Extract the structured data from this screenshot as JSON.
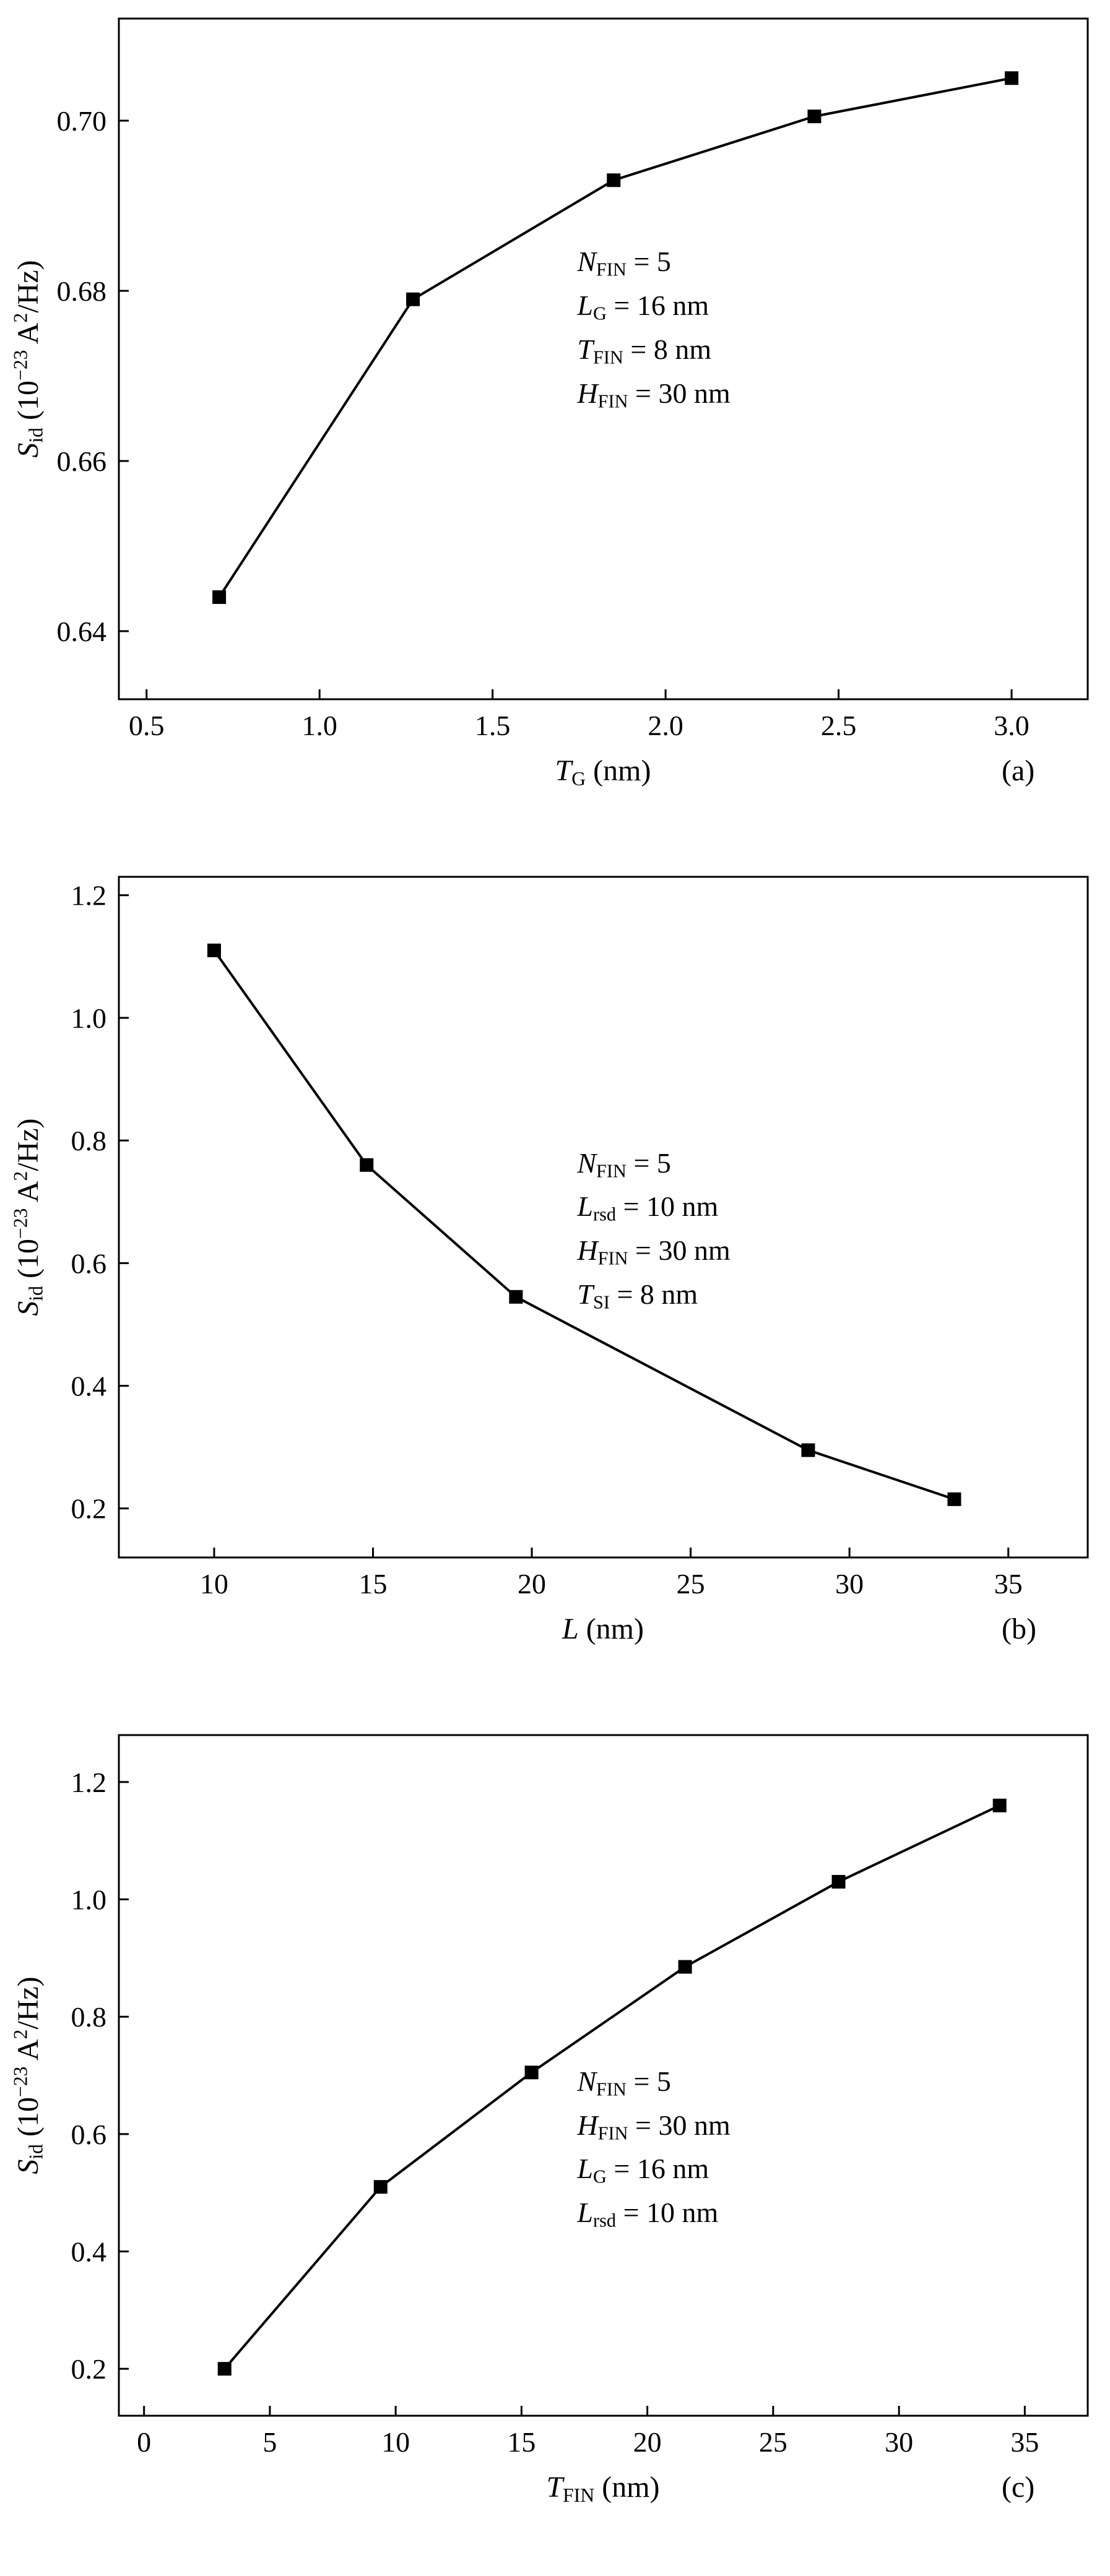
{
  "page": {
    "background": "#ffffff",
    "line_color": "#000000",
    "marker_color": "#000000"
  },
  "chart_data": [
    {
      "type": "line",
      "panel_label": "(a)",
      "marker": "square",
      "grid": false,
      "legend": "none",
      "x": [
        0.71,
        1.27,
        1.85,
        2.43,
        3.0
      ],
      "y": [
        0.644,
        0.679,
        0.693,
        0.7005,
        0.705
      ],
      "xlim": [
        0.42,
        3.22
      ],
      "ylim": [
        0.632,
        0.712
      ],
      "xticks": [
        0.5,
        1.0,
        1.5,
        2.0,
        2.5,
        3.0
      ],
      "xtick_labels": [
        "0.5",
        "1.0",
        "1.5",
        "2.0",
        "2.5",
        "3.0"
      ],
      "yticks": [
        0.64,
        0.66,
        0.68,
        0.7
      ],
      "ytick_labels": [
        "0.64",
        "0.66",
        "0.68",
        "0.70"
      ],
      "xlabel": [
        {
          "t": "T",
          "s": "i"
        },
        {
          "t": "G",
          "s": "sb"
        },
        {
          "t": " (nm)",
          "s": "n"
        }
      ],
      "ylabel": [
        {
          "t": "S",
          "s": "i"
        },
        {
          "t": "id",
          "s": "sb"
        },
        {
          "t": " (10",
          "s": "n"
        },
        {
          "t": "−23",
          "s": "sp"
        },
        {
          "t": " A",
          "s": "n"
        },
        {
          "t": "2",
          "s": "sp"
        },
        {
          "t": "/Hz)",
          "s": "n"
        }
      ],
      "annotation": [
        [
          {
            "t": "N",
            "s": "i"
          },
          {
            "t": "FIN",
            "s": "sb"
          },
          {
            "t": " = 5",
            "s": "n"
          }
        ],
        [
          {
            "t": "L",
            "s": "i"
          },
          {
            "t": "G",
            "s": "sb"
          },
          {
            "t": " = 16 nm",
            "s": "n"
          }
        ],
        [
          {
            "t": "T",
            "s": "i"
          },
          {
            "t": "FIN",
            "s": "sb"
          },
          {
            "t": " = 8 nm",
            "s": "n"
          }
        ],
        [
          {
            "t": "H",
            "s": "i"
          },
          {
            "t": "FIN",
            "s": "sb"
          },
          {
            "t": " = 30 nm",
            "s": "n"
          }
        ]
      ],
      "annot_pos": {
        "x": 0.52,
        "y": 0.28
      }
    },
    {
      "type": "line",
      "panel_label": "(b)",
      "marker": "square",
      "grid": false,
      "legend": "none",
      "x": [
        10,
        14.8,
        19.5,
        28.7,
        33.3
      ],
      "y": [
        1.11,
        0.76,
        0.545,
        0.295,
        0.215
      ],
      "xlim": [
        7,
        37.5
      ],
      "ylim": [
        0.12,
        1.23
      ],
      "xticks": [
        10,
        15,
        20,
        25,
        30,
        35
      ],
      "xtick_labels": [
        "10",
        "15",
        "20",
        "25",
        "30",
        "35"
      ],
      "yticks": [
        0.2,
        0.4,
        0.6,
        0.8,
        1.0,
        1.2
      ],
      "ytick_labels": [
        "0.2",
        "0.4",
        "0.6",
        "0.8",
        "1.0",
        "1.2"
      ],
      "xlabel": [
        {
          "t": "L",
          "s": "i"
        },
        {
          "t": " (nm)",
          "s": "n"
        }
      ],
      "ylabel": [
        {
          "t": "S",
          "s": "i"
        },
        {
          "t": "id",
          "s": "sb"
        },
        {
          "t": " (10",
          "s": "n"
        },
        {
          "t": "−23",
          "s": "sp"
        },
        {
          "t": " A",
          "s": "n"
        },
        {
          "t": "2",
          "s": "sp"
        },
        {
          "t": "/Hz)",
          "s": "n"
        }
      ],
      "annotation": [
        [
          {
            "t": "N",
            "s": "i"
          },
          {
            "t": "FIN",
            "s": "sb"
          },
          {
            "t": " = 5",
            "s": "n"
          }
        ],
        [
          {
            "t": "L",
            "s": "i"
          },
          {
            "t": "rsd",
            "s": "sb"
          },
          {
            "t": " = 10 nm",
            "s": "n"
          }
        ],
        [
          {
            "t": "H",
            "s": "i"
          },
          {
            "t": "FIN",
            "s": "sb"
          },
          {
            "t": " = 30 nm",
            "s": "n"
          }
        ],
        [
          {
            "t": "T",
            "s": "i"
          },
          {
            "t": "SI",
            "s": "sb"
          },
          {
            "t": " = 8 nm",
            "s": "n"
          }
        ]
      ],
      "annot_pos": {
        "x": 0.52,
        "y": 0.33
      }
    },
    {
      "type": "line",
      "panel_label": "(c)",
      "marker": "square",
      "grid": false,
      "legend": "none",
      "x": [
        3.2,
        9.4,
        15.4,
        21.5,
        27.6,
        34.0
      ],
      "y": [
        0.2,
        0.51,
        0.705,
        0.885,
        1.03,
        1.16
      ],
      "xlim": [
        -1,
        37.5
      ],
      "ylim": [
        0.12,
        1.28
      ],
      "xticks": [
        0,
        5,
        10,
        15,
        20,
        25,
        30,
        35
      ],
      "xtick_labels": [
        "0",
        "5",
        "10",
        "15",
        "20",
        "25",
        "30",
        "35"
      ],
      "yticks": [
        0.2,
        0.4,
        0.6,
        0.8,
        1.0,
        1.2
      ],
      "ytick_labels": [
        "0.2",
        "0.4",
        "0.6",
        "0.8",
        "1.0",
        "1.2"
      ],
      "xlabel": [
        {
          "t": "T",
          "s": "i"
        },
        {
          "t": "FIN",
          "s": "sb"
        },
        {
          "t": " (nm)",
          "s": "n"
        }
      ],
      "ylabel": [
        {
          "t": "S",
          "s": "i"
        },
        {
          "t": "id",
          "s": "sb"
        },
        {
          "t": " (10",
          "s": "n"
        },
        {
          "t": "−23",
          "s": "sp"
        },
        {
          "t": " A",
          "s": "n"
        },
        {
          "t": "2",
          "s": "sp"
        },
        {
          "t": "/Hz)",
          "s": "n"
        }
      ],
      "annotation": [
        [
          {
            "t": "N",
            "s": "i"
          },
          {
            "t": "FIN",
            "s": "sb"
          },
          {
            "t": " = 5",
            "s": "n"
          }
        ],
        [
          {
            "t": "H",
            "s": "i"
          },
          {
            "t": "FIN",
            "s": "sb"
          },
          {
            "t": " = 30 nm",
            "s": "n"
          }
        ],
        [
          {
            "t": "L",
            "s": "i"
          },
          {
            "t": "G",
            "s": "sb"
          },
          {
            "t": " = 16 nm",
            "s": "n"
          }
        ],
        [
          {
            "t": "L",
            "s": "i"
          },
          {
            "t": "rsd",
            "s": "sb"
          },
          {
            "t": " = 10 nm",
            "s": "n"
          }
        ]
      ],
      "annot_pos": {
        "x": 0.52,
        "y": 0.4
      }
    }
  ]
}
